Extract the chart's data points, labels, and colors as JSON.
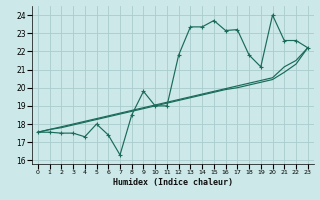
{
  "xlabel": "Humidex (Indice chaleur)",
  "ylabel": "",
  "bg_color": "#cce8e8",
  "grid_color": "#aacccc",
  "line_color": "#1a6b5a",
  "xlim": [
    -0.5,
    23.5
  ],
  "ylim": [
    15.8,
    24.5
  ],
  "yticks": [
    16,
    17,
    18,
    19,
    20,
    21,
    22,
    23,
    24
  ],
  "xticks": [
    0,
    1,
    2,
    3,
    4,
    5,
    6,
    7,
    8,
    9,
    10,
    11,
    12,
    13,
    14,
    15,
    16,
    17,
    18,
    19,
    20,
    21,
    22,
    23
  ],
  "series1_x": [
    0,
    1,
    2,
    3,
    4,
    5,
    6,
    7,
    8,
    9,
    10,
    11,
    12,
    13,
    14,
    15,
    16,
    17,
    18,
    19,
    20,
    21,
    22,
    23
  ],
  "series1_y": [
    17.55,
    17.55,
    17.5,
    17.5,
    17.3,
    18.0,
    17.4,
    16.3,
    18.5,
    19.8,
    19.0,
    19.0,
    21.8,
    23.35,
    23.35,
    23.7,
    23.15,
    23.2,
    21.8,
    21.15,
    24.0,
    22.6,
    22.6,
    22.2
  ],
  "series2_x": [
    0,
    23
  ],
  "series2_y": [
    17.55,
    22.2
  ],
  "series3_x": [
    0,
    23
  ],
  "series3_y": [
    17.55,
    22.2
  ],
  "diag1_x": [
    0,
    1,
    2,
    3,
    4,
    5,
    6,
    7,
    8,
    9,
    10,
    11,
    12,
    13,
    14,
    15,
    16,
    17,
    18,
    19,
    20,
    21,
    22,
    23
  ],
  "diag1_y": [
    17.55,
    17.7,
    17.85,
    18.0,
    18.15,
    18.3,
    18.45,
    18.6,
    18.75,
    18.9,
    19.05,
    19.2,
    19.35,
    19.5,
    19.65,
    19.8,
    19.95,
    20.1,
    20.25,
    20.4,
    20.55,
    21.15,
    21.5,
    22.2
  ],
  "diag2_x": [
    0,
    1,
    2,
    3,
    4,
    5,
    6,
    7,
    8,
    9,
    10,
    11,
    12,
    13,
    14,
    15,
    16,
    17,
    18,
    19,
    20,
    21,
    22,
    23
  ],
  "diag2_y": [
    17.55,
    17.7,
    17.8,
    17.95,
    18.1,
    18.25,
    18.4,
    18.55,
    18.7,
    18.85,
    19.0,
    19.15,
    19.3,
    19.45,
    19.6,
    19.75,
    19.9,
    20.0,
    20.15,
    20.3,
    20.45,
    20.85,
    21.3,
    22.2
  ]
}
